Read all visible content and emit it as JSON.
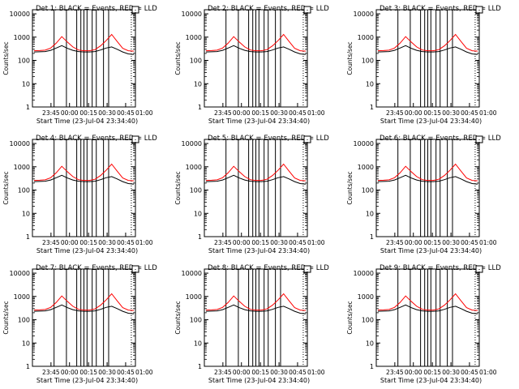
{
  "page": {
    "background": "#ffffff",
    "colors": {
      "events": "#000000",
      "lld": "#ff0000",
      "axis": "#000000"
    }
  },
  "panel_template": {
    "ylabel": "Counts/sec",
    "xlabel": "Start Time (23-Jul-04 23:34:40)",
    "yticks": [
      "1",
      "10",
      "100",
      "1000",
      "10000"
    ],
    "xticks": [
      "23:45",
      "00:00",
      "00:15",
      "00:30",
      "00:45",
      "01:00"
    ]
  },
  "chart_data": [
    {
      "type": "line",
      "title": "Det 1: BLACK = Events, RED = LLD",
      "yscale": "log",
      "ylim": [
        1,
        15000
      ],
      "xlim": [
        0,
        100
      ],
      "series": [
        {
          "name": "Events",
          "values": [
            230,
            235,
            240,
            270,
            340,
            430,
            330,
            270,
            240,
            230,
            230,
            240,
            280,
            340,
            380,
            300,
            230,
            190,
            180
          ]
        },
        {
          "name": "LLD",
          "values": [
            260,
            265,
            275,
            340,
            550,
            1050,
            620,
            380,
            280,
            260,
            260,
            290,
            420,
            700,
            1300,
            650,
            330,
            260,
            250
          ]
        }
      ]
    },
    {
      "type": "line",
      "title": "Det 2: BLACK = Events, RED = LLD",
      "yscale": "log",
      "ylim": [
        1,
        15000
      ],
      "xlim": [
        0,
        100
      ],
      "series": [
        {
          "name": "Events",
          "values": [
            230,
            235,
            240,
            270,
            340,
            430,
            330,
            270,
            240,
            230,
            230,
            240,
            280,
            340,
            380,
            300,
            230,
            190,
            180
          ]
        },
        {
          "name": "LLD",
          "values": [
            260,
            265,
            275,
            340,
            550,
            1050,
            620,
            380,
            280,
            260,
            260,
            290,
            420,
            700,
            1300,
            650,
            330,
            260,
            250
          ]
        }
      ]
    },
    {
      "type": "line",
      "title": "Det 3: BLACK = Events, RED = LLD",
      "yscale": "log",
      "ylim": [
        1,
        15000
      ],
      "xlim": [
        0,
        100
      ],
      "series": [
        {
          "name": "Events",
          "values": [
            230,
            235,
            240,
            270,
            340,
            430,
            330,
            270,
            240,
            230,
            230,
            240,
            280,
            340,
            380,
            300,
            230,
            190,
            180
          ]
        },
        {
          "name": "LLD",
          "values": [
            260,
            265,
            275,
            340,
            550,
            1050,
            620,
            380,
            280,
            260,
            260,
            290,
            420,
            700,
            1300,
            650,
            330,
            260,
            250
          ]
        }
      ]
    },
    {
      "type": "line",
      "title": "Det 4: BLACK = Events, RED = LLD",
      "yscale": "log",
      "ylim": [
        1,
        15000
      ],
      "xlim": [
        0,
        100
      ],
      "series": [
        {
          "name": "Events",
          "values": [
            230,
            235,
            240,
            270,
            340,
            430,
            330,
            270,
            240,
            230,
            230,
            240,
            280,
            340,
            380,
            300,
            230,
            190,
            180
          ]
        },
        {
          "name": "LLD",
          "values": [
            260,
            265,
            275,
            340,
            550,
            1050,
            620,
            380,
            280,
            260,
            260,
            290,
            420,
            700,
            1300,
            650,
            330,
            260,
            250
          ]
        }
      ]
    },
    {
      "type": "line",
      "title": "Det 5: BLACK = Events, RED = LLD",
      "yscale": "log",
      "ylim": [
        1,
        15000
      ],
      "xlim": [
        0,
        100
      ],
      "series": [
        {
          "name": "Events",
          "values": [
            230,
            235,
            240,
            270,
            340,
            430,
            330,
            270,
            240,
            230,
            230,
            240,
            280,
            340,
            380,
            300,
            230,
            190,
            180
          ]
        },
        {
          "name": "LLD",
          "values": [
            260,
            265,
            275,
            340,
            550,
            1050,
            620,
            380,
            280,
            260,
            260,
            290,
            420,
            700,
            1300,
            650,
            330,
            260,
            250
          ]
        }
      ]
    },
    {
      "type": "line",
      "title": "Det 6: BLACK = Events, RED = LLD",
      "yscale": "log",
      "ylim": [
        1,
        15000
      ],
      "xlim": [
        0,
        100
      ],
      "series": [
        {
          "name": "Events",
          "values": [
            230,
            235,
            240,
            270,
            340,
            430,
            330,
            270,
            240,
            230,
            230,
            240,
            280,
            340,
            380,
            300,
            230,
            190,
            180
          ]
        },
        {
          "name": "LLD",
          "values": [
            260,
            265,
            275,
            340,
            550,
            1050,
            620,
            380,
            280,
            260,
            260,
            290,
            420,
            700,
            1300,
            650,
            330,
            260,
            250
          ]
        }
      ]
    },
    {
      "type": "line",
      "title": "Det 7: BLACK = Events, RED = LLD",
      "yscale": "log",
      "ylim": [
        1,
        15000
      ],
      "xlim": [
        0,
        100
      ],
      "series": [
        {
          "name": "Events",
          "values": [
            230,
            235,
            240,
            270,
            340,
            430,
            330,
            270,
            240,
            230,
            230,
            240,
            280,
            340,
            380,
            300,
            230,
            190,
            180
          ]
        },
        {
          "name": "LLD",
          "values": [
            260,
            265,
            275,
            340,
            550,
            1050,
            620,
            380,
            280,
            260,
            260,
            290,
            420,
            700,
            1300,
            650,
            330,
            260,
            250
          ]
        }
      ]
    },
    {
      "type": "line",
      "title": "Det 8: BLACK = Events, RED = LLD",
      "yscale": "log",
      "ylim": [
        1,
        15000
      ],
      "xlim": [
        0,
        100
      ],
      "series": [
        {
          "name": "Events",
          "values": [
            230,
            235,
            240,
            270,
            340,
            430,
            330,
            270,
            240,
            230,
            230,
            240,
            280,
            340,
            380,
            300,
            230,
            190,
            180
          ]
        },
        {
          "name": "LLD",
          "values": [
            260,
            265,
            275,
            340,
            550,
            1050,
            620,
            380,
            280,
            260,
            260,
            290,
            420,
            700,
            1300,
            650,
            330,
            260,
            250
          ]
        }
      ]
    },
    {
      "type": "line",
      "title": "Det 9: BLACK = Events, RED = LLD",
      "yscale": "log",
      "ylim": [
        1,
        15000
      ],
      "xlim": [
        0,
        100
      ],
      "series": [
        {
          "name": "Events",
          "values": [
            230,
            235,
            240,
            270,
            340,
            430,
            330,
            270,
            240,
            230,
            230,
            240,
            280,
            340,
            380,
            300,
            230,
            190,
            180
          ]
        },
        {
          "name": "LLD",
          "values": [
            260,
            265,
            275,
            340,
            550,
            1050,
            620,
            380,
            280,
            260,
            260,
            290,
            420,
            700,
            1300,
            650,
            330,
            260,
            250
          ]
        }
      ]
    }
  ]
}
